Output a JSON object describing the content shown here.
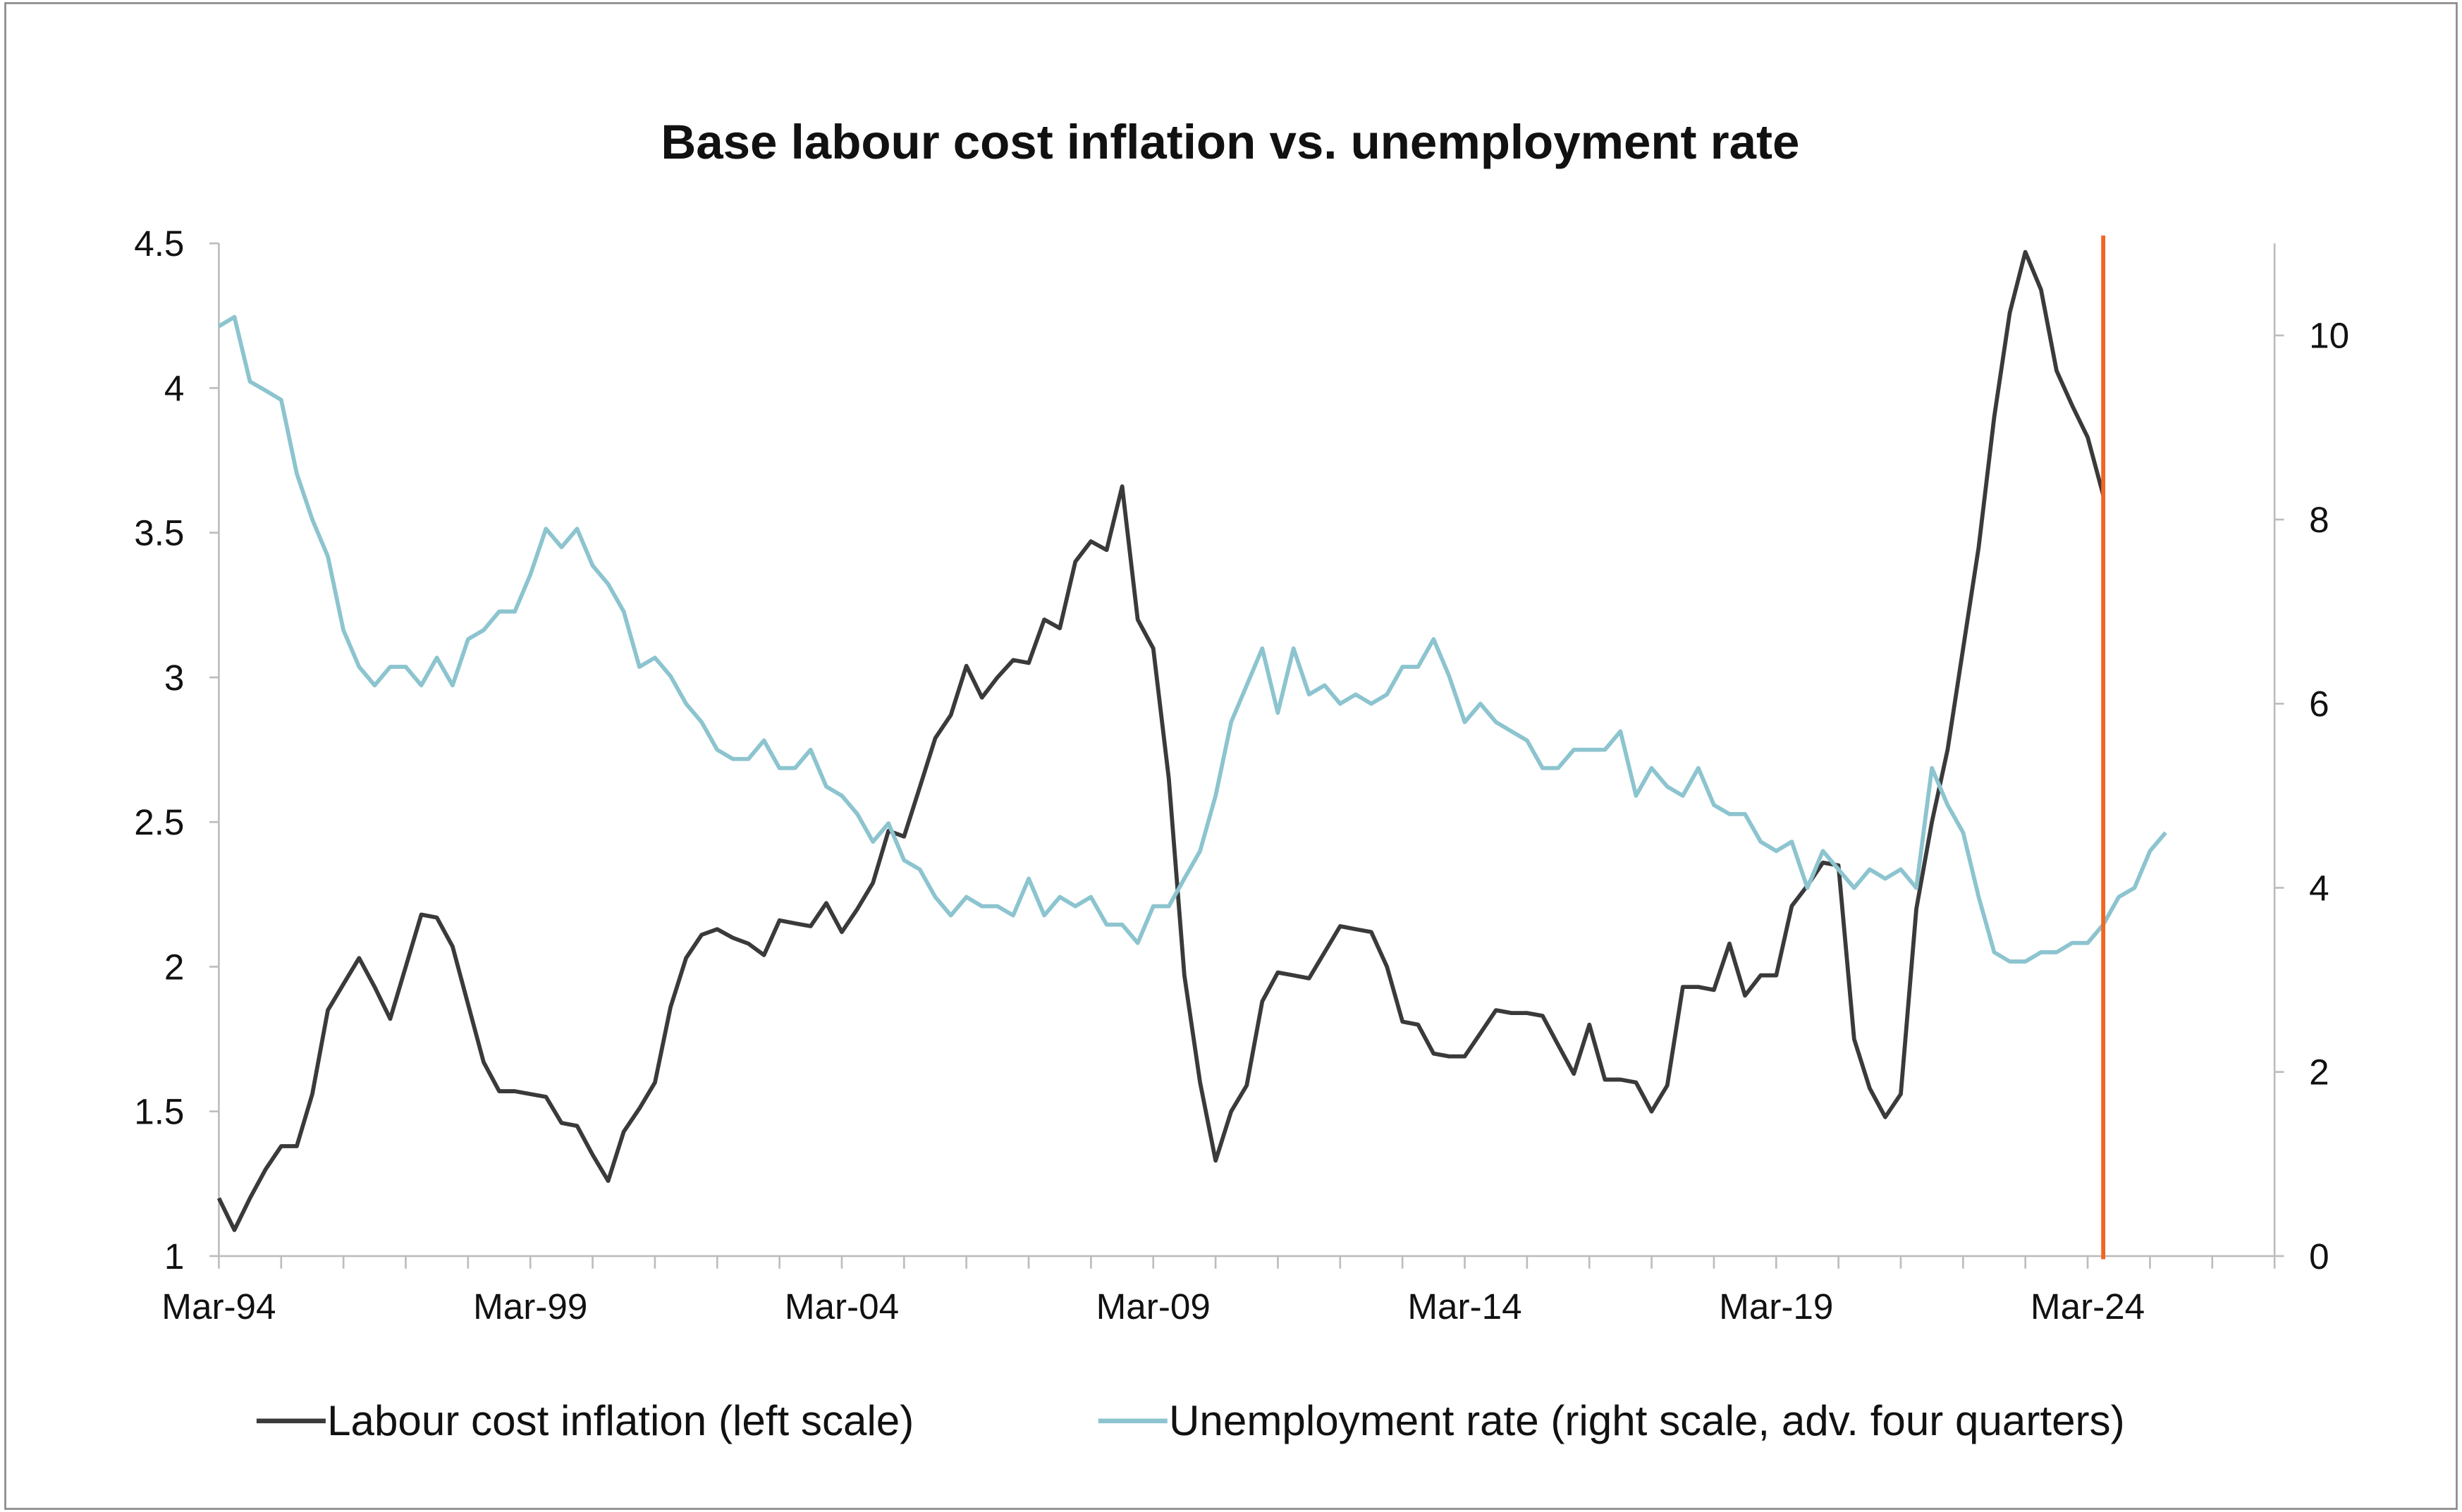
{
  "chart_data": {
    "type": "line",
    "title": "Base labour cost inflation vs. unemployment rate",
    "x_start": "Mar-94",
    "x_frequency": "quarterly",
    "x_range": [
      "Mar-94",
      "Mar-27"
    ],
    "x_tick_labels": [
      "Mar-94",
      "Mar-99",
      "Mar-04",
      "Mar-09",
      "Mar-14",
      "Mar-19",
      "Mar-24"
    ],
    "y_left": {
      "range": [
        1,
        4.5
      ],
      "ticks": [
        "1",
        "1.5",
        "2",
        "2.5",
        "3",
        "3.5",
        "4",
        "4.5"
      ]
    },
    "y_right": {
      "range": [
        0,
        11
      ],
      "ticks": [
        "0",
        "2",
        "4",
        "6",
        "8",
        "10"
      ]
    },
    "grid": false,
    "legend_placement": "bottom",
    "marker_line": {
      "x": "Jun-24",
      "color": "#f26522"
    },
    "series": [
      {
        "name": "Labour cost inflation (left scale)",
        "axis": "left",
        "color": "#3a3a3a",
        "values": [
          1.2,
          1.09,
          1.2,
          1.3,
          1.38,
          1.38,
          1.56,
          1.85,
          1.94,
          2.03,
          1.93,
          1.82,
          2.0,
          2.18,
          2.17,
          2.07,
          1.87,
          1.67,
          1.57,
          1.57,
          1.56,
          1.55,
          1.46,
          1.45,
          1.35,
          1.26,
          1.43,
          1.51,
          1.6,
          1.86,
          2.03,
          2.11,
          2.13,
          2.1,
          2.08,
          2.04,
          2.16,
          2.15,
          2.14,
          2.22,
          2.12,
          2.2,
          2.29,
          2.47,
          2.45,
          2.62,
          2.79,
          2.87,
          3.04,
          2.93,
          3.0,
          3.06,
          3.05,
          3.2,
          3.17,
          3.4,
          3.47,
          3.44,
          3.66,
          3.2,
          3.1,
          2.65,
          1.97,
          1.6,
          1.33,
          1.5,
          1.59,
          1.88,
          1.98,
          1.97,
          1.96,
          2.05,
          2.14,
          2.13,
          2.12,
          2.0,
          1.81,
          1.8,
          1.7,
          1.69,
          1.69,
          1.77,
          1.85,
          1.84,
          1.84,
          1.83,
          1.73,
          1.63,
          1.8,
          1.61,
          1.61,
          1.6,
          1.5,
          1.59,
          1.93,
          1.93,
          1.92,
          2.08,
          1.9,
          1.97,
          1.97,
          2.21,
          2.28,
          2.36,
          2.35,
          1.75,
          1.58,
          1.48,
          1.56,
          2.2,
          2.5,
          2.75,
          3.1,
          3.45,
          3.9,
          4.26,
          4.47,
          4.34,
          4.06,
          3.94,
          3.83,
          3.63
        ]
      },
      {
        "name": "Unemployment rate (right scale, adv. four quarters)",
        "axis": "right",
        "color": "#8cc4cf",
        "values": [
          10.1,
          10.2,
          9.5,
          9.4,
          9.3,
          8.5,
          8.0,
          7.6,
          6.8,
          6.4,
          6.2,
          6.4,
          6.4,
          6.2,
          6.5,
          6.2,
          6.7,
          6.8,
          7.0,
          7.0,
          7.4,
          7.9,
          7.7,
          7.9,
          7.5,
          7.3,
          7.0,
          6.4,
          6.5,
          6.3,
          6.0,
          5.8,
          5.5,
          5.4,
          5.4,
          5.6,
          5.3,
          5.3,
          5.5,
          5.1,
          5.0,
          4.8,
          4.5,
          4.7,
          4.3,
          4.2,
          3.9,
          3.7,
          3.9,
          3.8,
          3.8,
          3.7,
          4.1,
          3.7,
          3.9,
          3.8,
          3.9,
          3.6,
          3.6,
          3.4,
          3.8,
          3.8,
          4.1,
          4.4,
          5.0,
          5.8,
          6.2,
          6.6,
          5.9,
          6.6,
          6.1,
          6.2,
          6.0,
          6.1,
          6.0,
          6.1,
          6.4,
          6.4,
          6.7,
          6.3,
          5.8,
          6.0,
          5.8,
          5.7,
          5.6,
          5.3,
          5.3,
          5.5,
          5.5,
          5.5,
          5.7,
          5.0,
          5.3,
          5.1,
          5.0,
          5.3,
          4.9,
          4.8,
          4.8,
          4.5,
          4.4,
          4.5,
          4.0,
          4.4,
          4.2,
          4.0,
          4.2,
          4.1,
          4.2,
          4.0,
          5.3,
          4.9,
          4.6,
          3.9,
          3.3,
          3.2,
          3.2,
          3.3,
          3.3,
          3.4,
          3.4,
          3.6,
          3.9,
          4.0,
          4.4,
          4.6
        ]
      }
    ]
  }
}
